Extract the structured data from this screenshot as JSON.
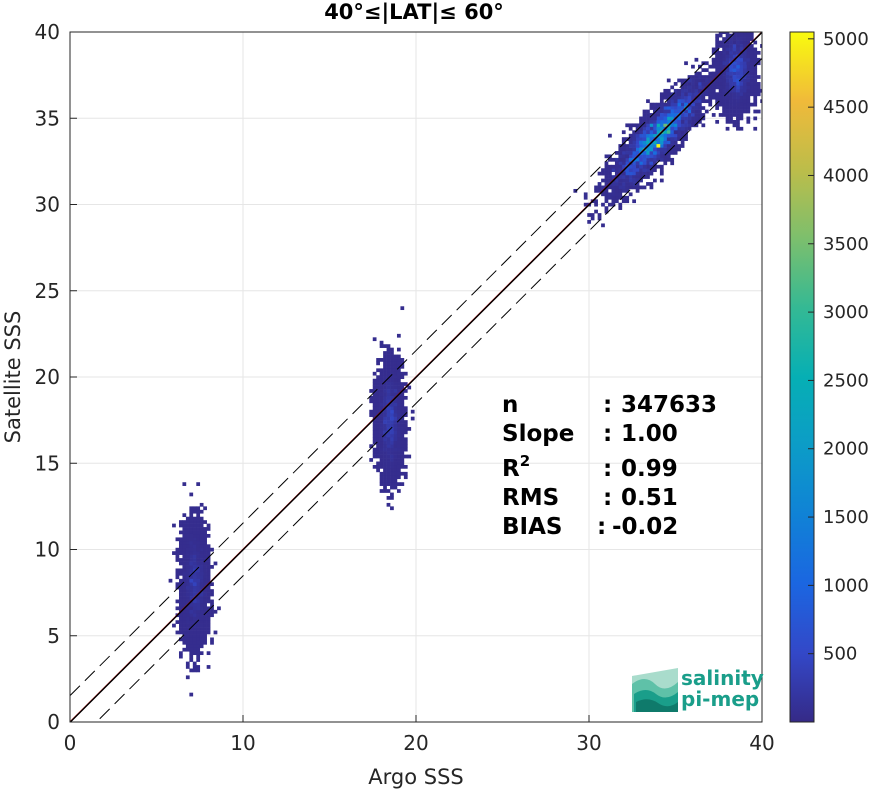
{
  "chart_data": {
    "type": "heatmap",
    "title": "40°≤|LAT|≤ 60°",
    "xlabel": "Argo SSS",
    "ylabel": "Satellite SSS",
    "xlim": [
      0,
      40
    ],
    "ylim": [
      0,
      40
    ],
    "xticks": [
      "0",
      "10",
      "20",
      "30",
      "40"
    ],
    "yticks": [
      "0",
      "5",
      "10",
      "15",
      "20",
      "25",
      "30",
      "35",
      "40"
    ],
    "grid": true,
    "colorbar": {
      "ticks": [
        "500",
        "1000",
        "1500",
        "2000",
        "2500",
        "3000",
        "3500",
        "4000",
        "4500",
        "5000"
      ],
      "range": [
        0,
        5050
      ],
      "colormap": "parula"
    },
    "reference_lines": [
      {
        "kind": "one-to-one",
        "color": "#cc0000",
        "slope": 1,
        "intercept": 0
      },
      {
        "kind": "regression",
        "color": "#000000",
        "slope": 1.0,
        "intercept": -0.02
      },
      {
        "kind": "offset-upper",
        "color": "#000000",
        "style": "dashed",
        "slope": 1,
        "intercept": 1.53
      },
      {
        "kind": "offset-lower",
        "color": "#000000",
        "style": "dashed",
        "slope": 1,
        "intercept": -1.53
      }
    ],
    "density_clusters": [
      {
        "x": 7.2,
        "y": 8.0,
        "sx": 0.35,
        "sy": 1.6,
        "peak": 400
      },
      {
        "x": 18.5,
        "y": 17.5,
        "sx": 0.35,
        "sy": 1.5,
        "peak": 450
      },
      {
        "x": 34.0,
        "y": 34.0,
        "sx": 1.4,
        "sy": 1.1,
        "peak": 5000
      },
      {
        "x": 38.5,
        "y": 37.8,
        "sx": 0.45,
        "sy": 1.1,
        "peak": 800
      }
    ],
    "stats": {
      "n": "347633",
      "slope": "1.00",
      "r2": "0.99",
      "rms": "0.51",
      "bias": "-0.02"
    }
  },
  "stats_labels": {
    "n": "n",
    "slope": "Slope",
    "r2_base": "R",
    "r2_sup": "2",
    "rms": "RMS",
    "bias": "BIAS"
  },
  "logo": {
    "line1": "salinity",
    "line2": "pi-mep"
  },
  "colors": {
    "one_to_one": "#cc0000",
    "logo": "#1a9e8a"
  }
}
